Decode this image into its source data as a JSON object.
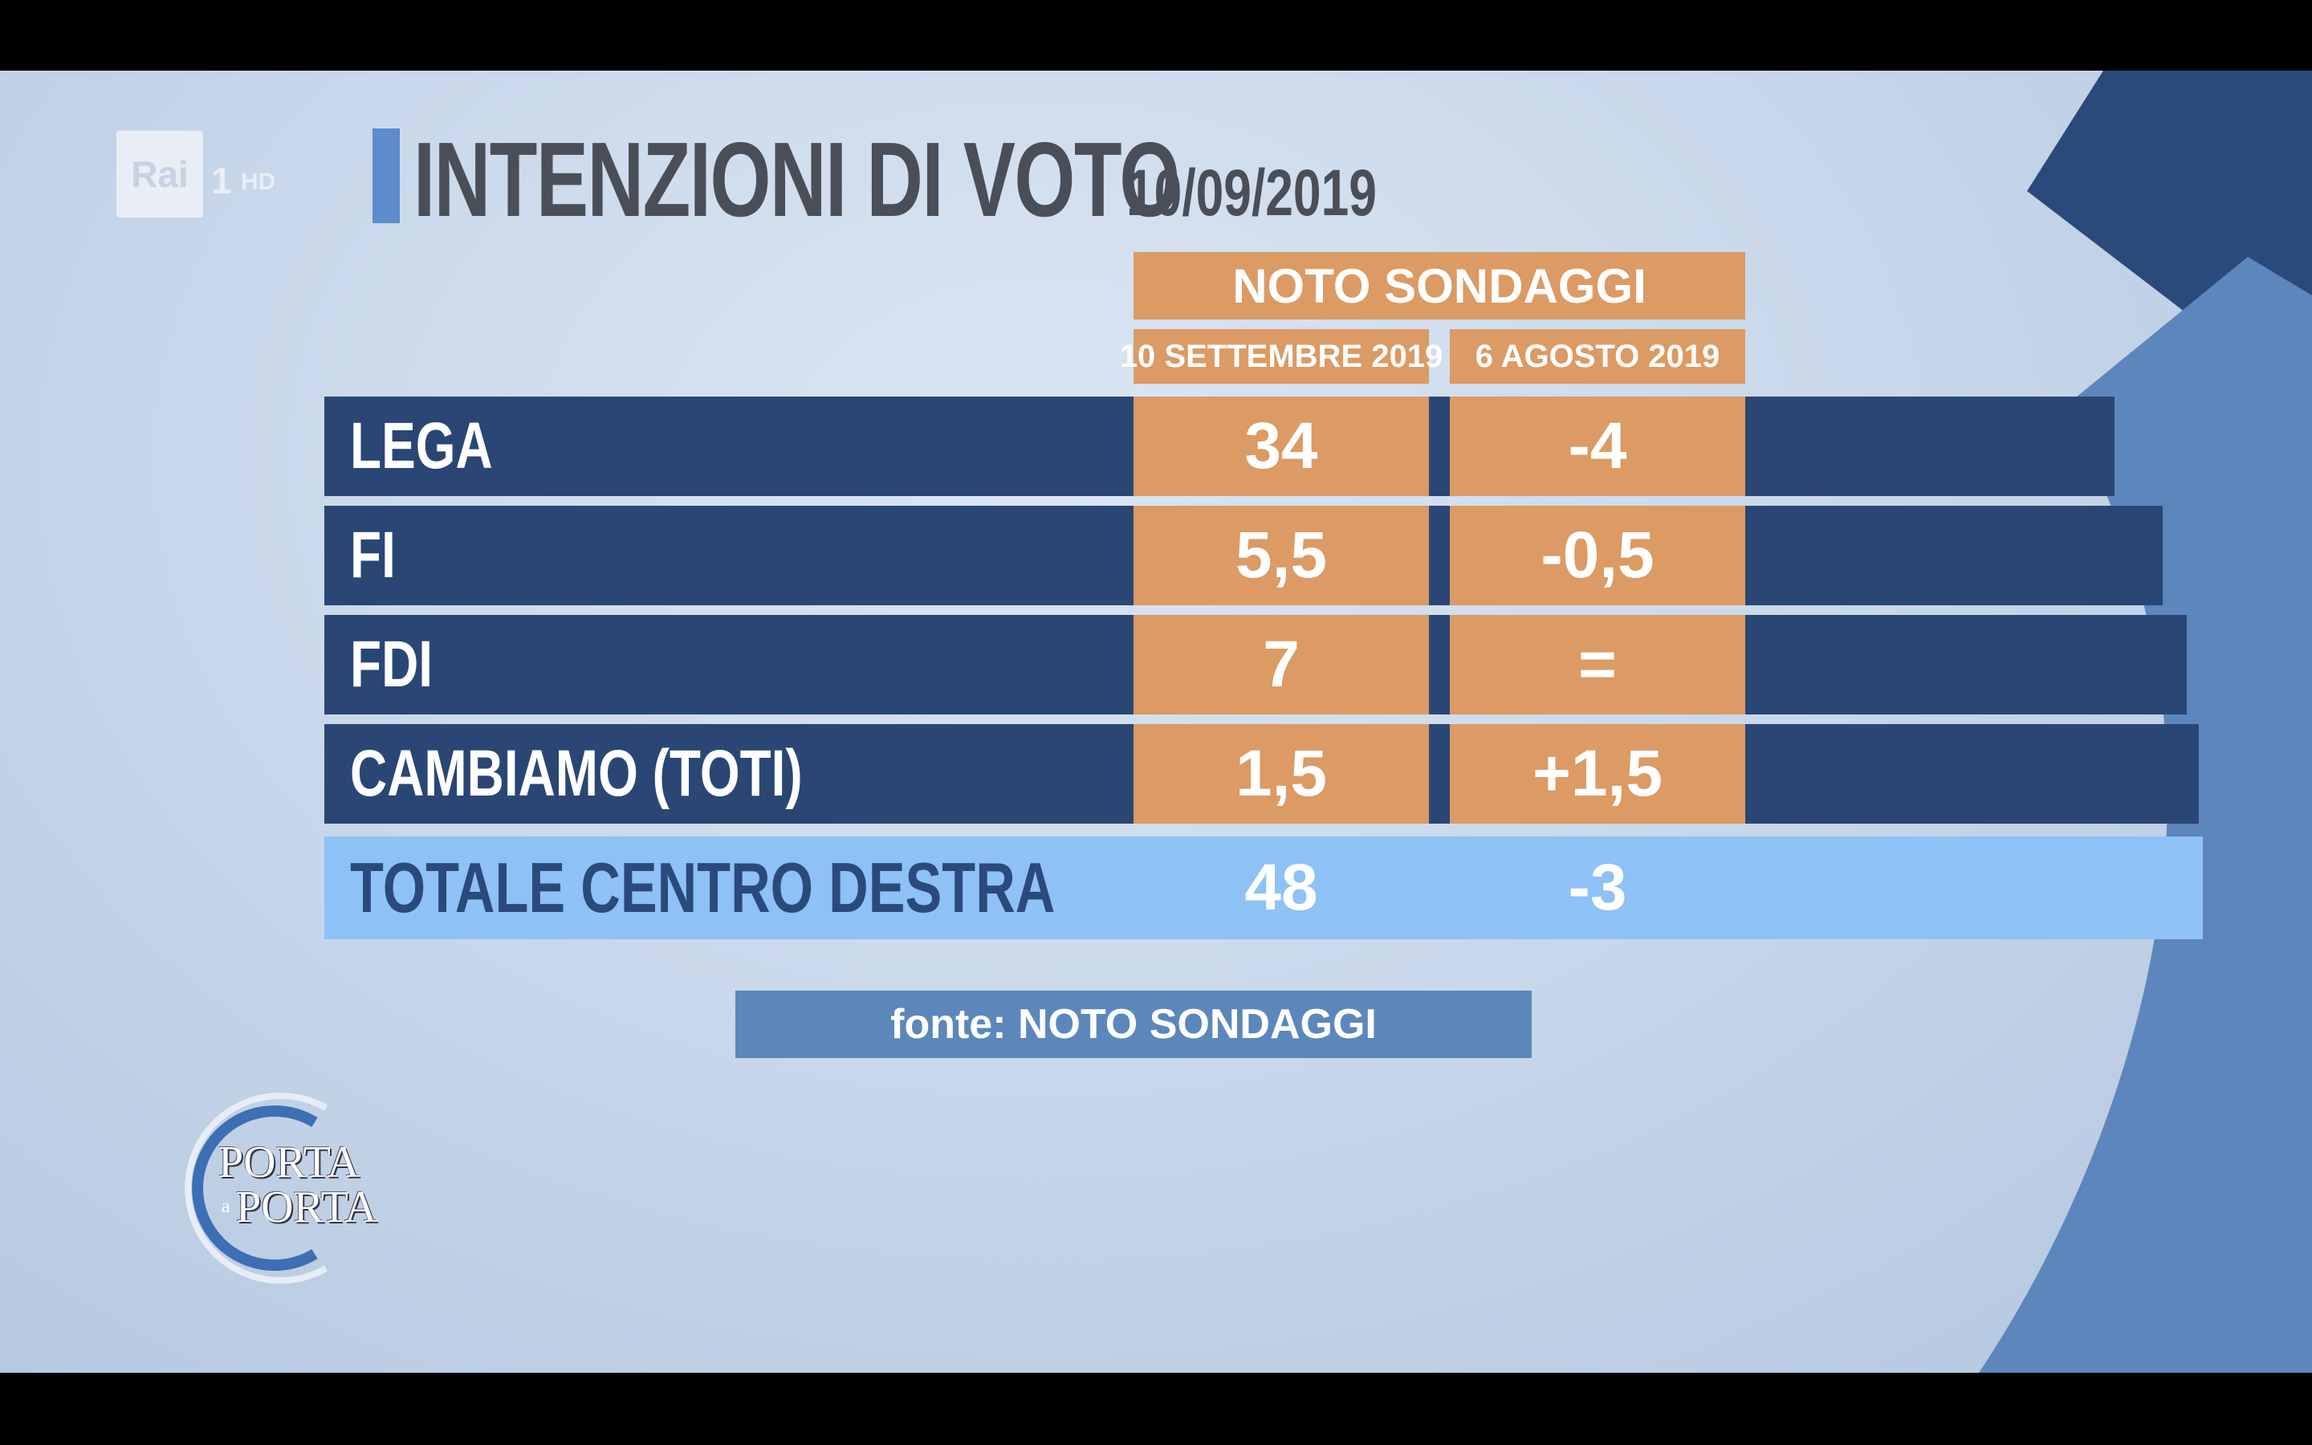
{
  "channel": {
    "logo_text": "Rai",
    "number": "1",
    "quality": "HD"
  },
  "title": {
    "main": "INTENZIONI DI VOTO",
    "date": "10/09/2019"
  },
  "poll": {
    "source_header": "NOTO SONDAGGI",
    "columns": [
      "10 SETTEMBRE 2019",
      "6 AGOSTO 2019"
    ]
  },
  "rows": [
    {
      "party": "LEGA",
      "current": "34",
      "change": "-4"
    },
    {
      "party": "FI",
      "current": "5,5",
      "change": "-0,5"
    },
    {
      "party": "FDI",
      "current": "7",
      "change": "="
    },
    {
      "party": "CAMBIAMO (TOTI)",
      "current": "1,5",
      "change": "+1,5"
    }
  ],
  "total": {
    "label": "TOTALE CENTRO DESTRA",
    "current": "48",
    "change": "-3"
  },
  "source_note": "fonte: NOTO SONDAGGI",
  "show_logo": {
    "line1": "PORTA",
    "connector": "a",
    "line2": "PORTA"
  },
  "colors": {
    "row_bg": "#2a4674",
    "orange": "#dc9a64",
    "total_bg": "#8ec1f5",
    "title_accent": "#5d8ccc"
  },
  "icons": [
    "rai-logo-icon",
    "porta-a-porta-logo-icon"
  ]
}
